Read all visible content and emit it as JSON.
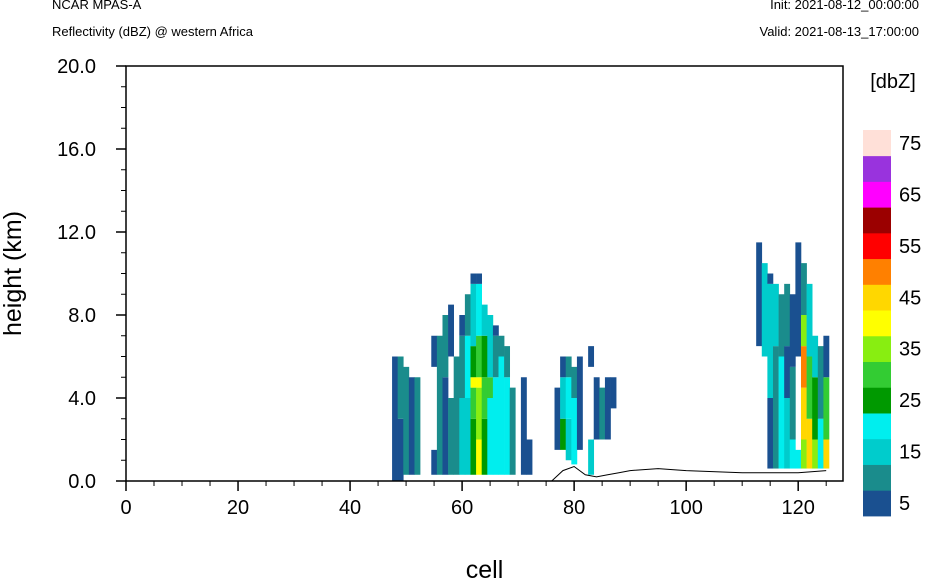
{
  "header": {
    "model": "NCAR MPAS-A",
    "field": "Reflectivity (dBZ) @ western Africa",
    "init": "Init: 2021-08-12_00:00:00",
    "valid": "Valid: 2021-08-13_17:00:00"
  },
  "chart_data": {
    "type": "heatmap",
    "xlabel": "cell",
    "ylabel": "height (km)",
    "xlim": [
      0,
      128
    ],
    "ylim": [
      0,
      20
    ],
    "x_ticks": [
      "0",
      "20",
      "40",
      "60",
      "80",
      "100",
      "120"
    ],
    "x_tick_values": [
      0,
      20,
      40,
      60,
      80,
      100,
      120
    ],
    "y_ticks": [
      "0.0",
      "4.0",
      "8.0",
      "12.0",
      "16.0",
      "20.0"
    ],
    "y_tick_values": [
      0,
      4,
      8,
      12,
      16,
      20
    ],
    "colorbar": {
      "title": "[dbZ]",
      "levels": [
        5,
        10,
        15,
        20,
        25,
        30,
        35,
        40,
        45,
        50,
        55,
        60,
        65,
        70,
        75
      ],
      "labels": [
        "5",
        "15",
        "25",
        "35",
        "45",
        "55",
        "65",
        "75"
      ],
      "colors": [
        "#1a5090",
        "#1a8c8c",
        "#00cccc",
        "#00eeee",
        "#009900",
        "#33cc33",
        "#88ee11",
        "#ffff00",
        "#ffd700",
        "#ff8000",
        "#ff0000",
        "#9b0000",
        "#ff00ff",
        "#9933dd",
        "#ffe0d8"
      ]
    },
    "terrain": {
      "x": [
        0,
        76,
        78,
        80,
        82,
        84,
        86,
        88,
        90,
        95,
        100,
        110,
        120,
        125
      ],
      "y": [
        0,
        0,
        0.5,
        0.7,
        0.3,
        0.2,
        0.3,
        0.4,
        0.5,
        0.6,
        0.5,
        0.4,
        0.4,
        0.5
      ]
    },
    "columns": [
      {
        "x": 48,
        "bands": [
          [
            0,
            6,
            5
          ]
        ]
      },
      {
        "x": 49,
        "bands": [
          [
            0,
            3,
            5
          ],
          [
            3,
            6,
            10
          ]
        ]
      },
      {
        "x": 50,
        "bands": [
          [
            0.3,
            5.5,
            10
          ]
        ]
      },
      {
        "x": 51,
        "bands": [
          [
            0.3,
            5,
            5
          ]
        ]
      },
      {
        "x": 52,
        "bands": [
          [
            0.3,
            5,
            10
          ]
        ]
      },
      {
        "x": 55,
        "bands": [
          [
            0.3,
            1.5,
            5
          ],
          [
            5.5,
            7,
            5
          ]
        ]
      },
      {
        "x": 56,
        "bands": [
          [
            0.3,
            7,
            10
          ]
        ]
      },
      {
        "x": 57,
        "bands": [
          [
            0.3,
            5,
            5
          ],
          [
            5,
            8,
            10
          ]
        ]
      },
      {
        "x": 58,
        "bands": [
          [
            0.3,
            4,
            10
          ],
          [
            6,
            8.5,
            5
          ]
        ]
      },
      {
        "x": 59,
        "bands": [
          [
            0.3,
            6,
            10
          ]
        ]
      },
      {
        "x": 60,
        "bands": [
          [
            0.3,
            4,
            15
          ],
          [
            4,
            7,
            10
          ],
          [
            7,
            8,
            5
          ]
        ]
      },
      {
        "x": 61,
        "bands": [
          [
            0.3,
            4,
            15
          ],
          [
            4,
            7,
            20
          ],
          [
            7,
            9,
            10
          ]
        ]
      },
      {
        "x": 62,
        "bands": [
          [
            0.3,
            3,
            25
          ],
          [
            3,
            4.5,
            30
          ],
          [
            4.5,
            5,
            40
          ],
          [
            5,
            6.5,
            25
          ],
          [
            6.5,
            9.5,
            15
          ],
          [
            9.5,
            10,
            5
          ]
        ]
      },
      {
        "x": 63,
        "bands": [
          [
            0.3,
            2,
            40
          ],
          [
            2,
            4.5,
            35
          ],
          [
            4.5,
            5,
            40
          ],
          [
            5,
            7,
            30
          ],
          [
            7,
            9.5,
            20
          ],
          [
            9.5,
            10,
            5
          ]
        ]
      },
      {
        "x": 64,
        "bands": [
          [
            0.3,
            3,
            25
          ],
          [
            3,
            5,
            30
          ],
          [
            5,
            7,
            25
          ],
          [
            7,
            8.5,
            15
          ]
        ]
      },
      {
        "x": 65,
        "bands": [
          [
            0.3,
            4,
            20
          ],
          [
            4,
            5,
            30
          ],
          [
            5,
            8,
            15
          ]
        ]
      },
      {
        "x": 66,
        "bands": [
          [
            0.3,
            5,
            20
          ],
          [
            5,
            7,
            10
          ],
          [
            7,
            7.5,
            5
          ]
        ]
      },
      {
        "x": 67,
        "bands": [
          [
            0.3,
            6,
            20
          ],
          [
            6,
            7,
            10
          ]
        ]
      },
      {
        "x": 68,
        "bands": [
          [
            0.3,
            5,
            20
          ],
          [
            5,
            6.5,
            10
          ]
        ]
      },
      {
        "x": 69,
        "bands": [
          [
            0.3,
            4.5,
            10
          ]
        ]
      },
      {
        "x": 71,
        "bands": [
          [
            0.3,
            5,
            5
          ]
        ]
      },
      {
        "x": 72,
        "bands": [
          [
            0.3,
            2,
            5
          ]
        ]
      },
      {
        "x": 77,
        "bands": [
          [
            1.5,
            4.5,
            5
          ]
        ]
      },
      {
        "x": 78,
        "bands": [
          [
            1.5,
            3,
            25
          ],
          [
            3,
            5,
            15
          ],
          [
            5,
            6,
            5
          ]
        ]
      },
      {
        "x": 79,
        "bands": [
          [
            1,
            3,
            15
          ],
          [
            3,
            5,
            20
          ],
          [
            5,
            6,
            10
          ]
        ]
      },
      {
        "x": 80,
        "bands": [
          [
            0.8,
            4,
            20
          ],
          [
            4,
            5.5,
            10
          ]
        ]
      },
      {
        "x": 81,
        "bands": [
          [
            1.5,
            6,
            5
          ]
        ]
      },
      {
        "x": 83,
        "bands": [
          [
            0.3,
            2,
            15
          ],
          [
            5.5,
            6.5,
            5
          ]
        ]
      },
      {
        "x": 84,
        "bands": [
          [
            2,
            5,
            5
          ]
        ]
      },
      {
        "x": 85,
        "bands": [
          [
            2,
            4.5,
            10
          ]
        ]
      },
      {
        "x": 86,
        "bands": [
          [
            2,
            5,
            5
          ]
        ]
      },
      {
        "x": 87,
        "bands": [
          [
            3.5,
            5,
            5
          ]
        ]
      },
      {
        "x": 113,
        "bands": [
          [
            6.5,
            11.5,
            5
          ]
        ]
      },
      {
        "x": 114,
        "bands": [
          [
            6,
            10.5,
            15
          ]
        ]
      },
      {
        "x": 115,
        "bands": [
          [
            0.6,
            4,
            5
          ],
          [
            4,
            9.5,
            15
          ],
          [
            9.5,
            10,
            5
          ]
        ]
      },
      {
        "x": 116,
        "bands": [
          [
            0.6,
            6.5,
            10
          ],
          [
            6.5,
            9.5,
            15
          ]
        ]
      },
      {
        "x": 117,
        "bands": [
          [
            0.6,
            6,
            20
          ],
          [
            6,
            9,
            10
          ]
        ]
      },
      {
        "x": 118,
        "bands": [
          [
            0.6,
            4,
            15
          ],
          [
            4,
            6.5,
            5
          ],
          [
            6.5,
            9.5,
            10
          ]
        ]
      },
      {
        "x": 119,
        "bands": [
          [
            0.6,
            2,
            20
          ],
          [
            2,
            5.5,
            10
          ],
          [
            5.5,
            9,
            5
          ]
        ]
      },
      {
        "x": 120,
        "bands": [
          [
            0.6,
            1.5,
            20
          ],
          [
            6,
            11.5,
            5
          ]
        ]
      },
      {
        "x": 121,
        "bands": [
          [
            0.6,
            2,
            35
          ],
          [
            2,
            4.5,
            45
          ],
          [
            4.5,
            6.5,
            50
          ],
          [
            6.5,
            8,
            35
          ],
          [
            8,
            10.5,
            10
          ]
        ]
      },
      {
        "x": 122,
        "bands": [
          [
            0.6,
            3,
            45
          ],
          [
            3,
            6,
            30
          ],
          [
            6,
            9.5,
            15
          ]
        ]
      },
      {
        "x": 123,
        "bands": [
          [
            0.6,
            2,
            35
          ],
          [
            2,
            5,
            25
          ],
          [
            5,
            7,
            15
          ]
        ]
      },
      {
        "x": 124,
        "bands": [
          [
            0.6,
            3,
            20
          ],
          [
            3,
            6.5,
            10
          ]
        ]
      },
      {
        "x": 125,
        "bands": [
          [
            0.6,
            2,
            45
          ],
          [
            2,
            5,
            30
          ],
          [
            5,
            7,
            5
          ]
        ]
      }
    ]
  }
}
